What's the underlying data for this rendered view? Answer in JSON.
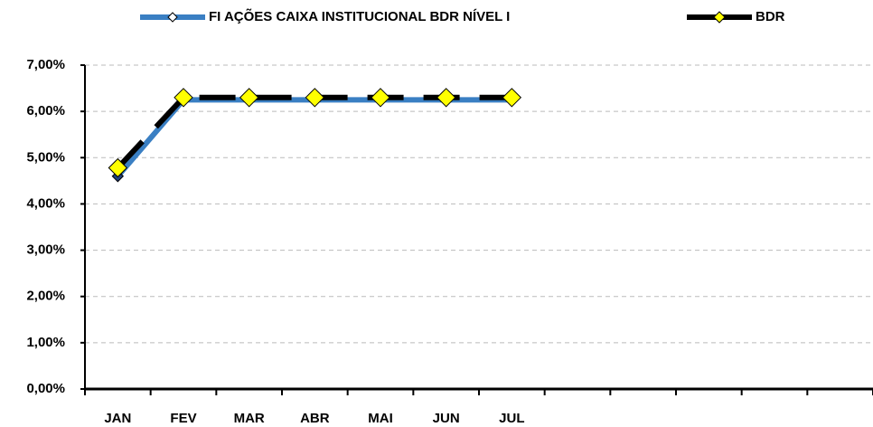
{
  "chart_data": {
    "type": "line",
    "categories": [
      "JAN",
      "FEV",
      "MAR",
      "ABR",
      "MAI",
      "JUN",
      "JUL",
      null,
      null,
      null,
      null,
      null
    ],
    "series": [
      {
        "name": "FI AÇÕES CAIXA INSTITUCIONAL BDR NÍVEL I",
        "color": "#3a7fc3",
        "marker_color": "#1f3f7a",
        "values": [
          4.6,
          6.25,
          6.25,
          6.25,
          6.25,
          6.25,
          6.25,
          null,
          null,
          null,
          null,
          null
        ]
      },
      {
        "name": "BDR",
        "color": "#000000",
        "marker_color": "#ffff00",
        "values": [
          4.78,
          6.3,
          6.3,
          6.3,
          6.3,
          6.3,
          6.3,
          null,
          null,
          null,
          null,
          null
        ]
      }
    ],
    "ylim": [
      0,
      7
    ],
    "yticks": [
      {
        "value": 0,
        "label": "0,00%"
      },
      {
        "value": 1,
        "label": "1,00%"
      },
      {
        "value": 2,
        "label": "2,00%"
      },
      {
        "value": 3,
        "label": "3,00%"
      },
      {
        "value": 4,
        "label": "4,00%"
      },
      {
        "value": 5,
        "label": "5,00%"
      },
      {
        "value": 6,
        "label": "6,00%"
      },
      {
        "value": 7,
        "label": "7,00%"
      }
    ],
    "grid": true,
    "legend": "top"
  }
}
